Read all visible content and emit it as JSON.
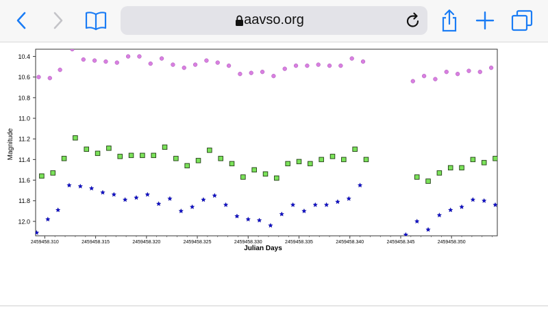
{
  "browser": {
    "url": "aavso.org",
    "icons": [
      "back-icon",
      "forward-icon",
      "bookmarks-icon",
      "lock-icon",
      "reload-icon",
      "share-icon",
      "new-tab-icon",
      "tabs-icon"
    ],
    "accent_color": "#1a7cf5"
  },
  "chart_data": {
    "type": "scatter",
    "title": "",
    "xlabel": "Julian Days",
    "ylabel": "Magnitude",
    "xlim": [
      2459458.3091,
      2459458.3545
    ],
    "ylim": [
      12.14,
      10.33
    ],
    "y_inverted": true,
    "grid": true,
    "x_ticks": [
      "2459458.310",
      "2459458.315",
      "2459458.320",
      "2459458.325",
      "2459458.330",
      "2459458.335",
      "2459458.340",
      "2459458.345",
      "2459458.350"
    ],
    "x_tick_values": [
      2459458.31,
      2459458.315,
      2459458.32,
      2459458.325,
      2459458.33,
      2459458.335,
      2459458.34,
      2459458.345,
      2459458.35
    ],
    "y_ticks": [
      "10.4",
      "10.6",
      "10.8",
      "11.0",
      "11.2",
      "11.4",
      "11.6",
      "11.8",
      "12.0"
    ],
    "y_tick_values": [
      10.4,
      10.6,
      10.8,
      11.0,
      11.2,
      11.4,
      11.6,
      11.8,
      12.0
    ],
    "series": [
      {
        "marker": "circle",
        "color": "#d87fe0",
        "stroke": "#a855b5",
        "points": [
          [
            2459458.3094,
            10.6
          ],
          [
            2459458.3105,
            10.61
          ],
          [
            2459458.3115,
            10.53
          ],
          [
            2459458.3127,
            10.33
          ],
          [
            2459458.3138,
            10.43
          ],
          [
            2459458.3149,
            10.44
          ],
          [
            2459458.316,
            10.45
          ],
          [
            2459458.3171,
            10.46
          ],
          [
            2459458.3182,
            10.4
          ],
          [
            2459458.3193,
            10.4
          ],
          [
            2459458.3204,
            10.47
          ],
          [
            2459458.3215,
            10.42
          ],
          [
            2459458.3226,
            10.48
          ],
          [
            2459458.3237,
            10.51
          ],
          [
            2459458.3248,
            10.48
          ],
          [
            2459458.3259,
            10.44
          ],
          [
            2459458.327,
            10.46
          ],
          [
            2459458.3281,
            10.49
          ],
          [
            2459458.3292,
            10.57
          ],
          [
            2459458.3303,
            10.56
          ],
          [
            2459458.3314,
            10.55
          ],
          [
            2459458.3325,
            10.59
          ],
          [
            2459458.3336,
            10.52
          ],
          [
            2459458.3347,
            10.49
          ],
          [
            2459458.3358,
            10.49
          ],
          [
            2459458.3369,
            10.48
          ],
          [
            2459458.338,
            10.49
          ],
          [
            2459458.3391,
            10.49
          ],
          [
            2459458.3402,
            10.42
          ],
          [
            2459458.3413,
            10.45
          ],
          [
            2459458.3462,
            10.64
          ],
          [
            2459458.3473,
            10.59
          ],
          [
            2459458.3484,
            10.62
          ],
          [
            2459458.3495,
            10.55
          ],
          [
            2459458.3506,
            10.57
          ],
          [
            2459458.3517,
            10.54
          ],
          [
            2459458.3528,
            10.55
          ],
          [
            2459458.3539,
            10.51
          ],
          [
            2459458.3549,
            10.53
          ]
        ]
      },
      {
        "marker": "square",
        "color": "#7be25a",
        "stroke": "#1d3a10",
        "points": [
          [
            2459458.3097,
            11.56
          ],
          [
            2459458.3108,
            11.53
          ],
          [
            2459458.3119,
            11.39
          ],
          [
            2459458.313,
            11.19
          ],
          [
            2459458.3141,
            11.3
          ],
          [
            2459458.3152,
            11.34
          ],
          [
            2459458.3163,
            11.29
          ],
          [
            2459458.3174,
            11.37
          ],
          [
            2459458.3185,
            11.36
          ],
          [
            2459458.3196,
            11.36
          ],
          [
            2459458.3207,
            11.36
          ],
          [
            2459458.3218,
            11.28
          ],
          [
            2459458.3229,
            11.39
          ],
          [
            2459458.324,
            11.46
          ],
          [
            2459458.3251,
            11.41
          ],
          [
            2459458.3262,
            11.31
          ],
          [
            2459458.3273,
            11.39
          ],
          [
            2459458.3284,
            11.44
          ],
          [
            2459458.3295,
            11.57
          ],
          [
            2459458.3306,
            11.5
          ],
          [
            2459458.3317,
            11.54
          ],
          [
            2459458.3328,
            11.58
          ],
          [
            2459458.3339,
            11.44
          ],
          [
            2459458.335,
            11.42
          ],
          [
            2459458.3361,
            11.44
          ],
          [
            2459458.3372,
            11.4
          ],
          [
            2459458.3383,
            11.37
          ],
          [
            2459458.3394,
            11.4
          ],
          [
            2459458.3405,
            11.3
          ],
          [
            2459458.3416,
            11.4
          ],
          [
            2459458.3466,
            11.57
          ],
          [
            2459458.3477,
            11.61
          ],
          [
            2459458.3488,
            11.53
          ],
          [
            2459458.3499,
            11.48
          ],
          [
            2459458.351,
            11.48
          ],
          [
            2459458.3521,
            11.4
          ],
          [
            2459458.3532,
            11.43
          ],
          [
            2459458.3543,
            11.39
          ]
        ]
      },
      {
        "marker": "star",
        "color": "#1010c8",
        "stroke": "#0a0a90",
        "points": [
          [
            2459458.3092,
            12.11
          ],
          [
            2459458.3103,
            11.98
          ],
          [
            2459458.3113,
            11.89
          ],
          [
            2459458.3124,
            11.65
          ],
          [
            2459458.3135,
            11.66
          ],
          [
            2459458.3146,
            11.68
          ],
          [
            2459458.3157,
            11.72
          ],
          [
            2459458.3168,
            11.74
          ],
          [
            2459458.3179,
            11.79
          ],
          [
            2459458.319,
            11.77
          ],
          [
            2459458.3201,
            11.74
          ],
          [
            2459458.3212,
            11.83
          ],
          [
            2459458.3223,
            11.78
          ],
          [
            2459458.3234,
            11.9
          ],
          [
            2459458.3245,
            11.86
          ],
          [
            2459458.3256,
            11.79
          ],
          [
            2459458.3267,
            11.75
          ],
          [
            2459458.3278,
            11.84
          ],
          [
            2459458.3289,
            11.95
          ],
          [
            2459458.33,
            11.98
          ],
          [
            2459458.3311,
            11.99
          ],
          [
            2459458.3322,
            12.04
          ],
          [
            2459458.3333,
            11.93
          ],
          [
            2459458.3344,
            11.84
          ],
          [
            2459458.3355,
            11.9
          ],
          [
            2459458.3366,
            11.84
          ],
          [
            2459458.3377,
            11.84
          ],
          [
            2459458.3388,
            11.81
          ],
          [
            2459458.3399,
            11.78
          ],
          [
            2459458.341,
            11.65
          ],
          [
            2459458.3455,
            12.13
          ],
          [
            2459458.3466,
            12.0
          ],
          [
            2459458.3477,
            12.08
          ],
          [
            2459458.3488,
            11.94
          ],
          [
            2459458.3499,
            11.89
          ],
          [
            2459458.351,
            11.86
          ],
          [
            2459458.3521,
            11.79
          ],
          [
            2459458.3532,
            11.8
          ],
          [
            2459458.3543,
            11.84
          ]
        ]
      }
    ]
  }
}
